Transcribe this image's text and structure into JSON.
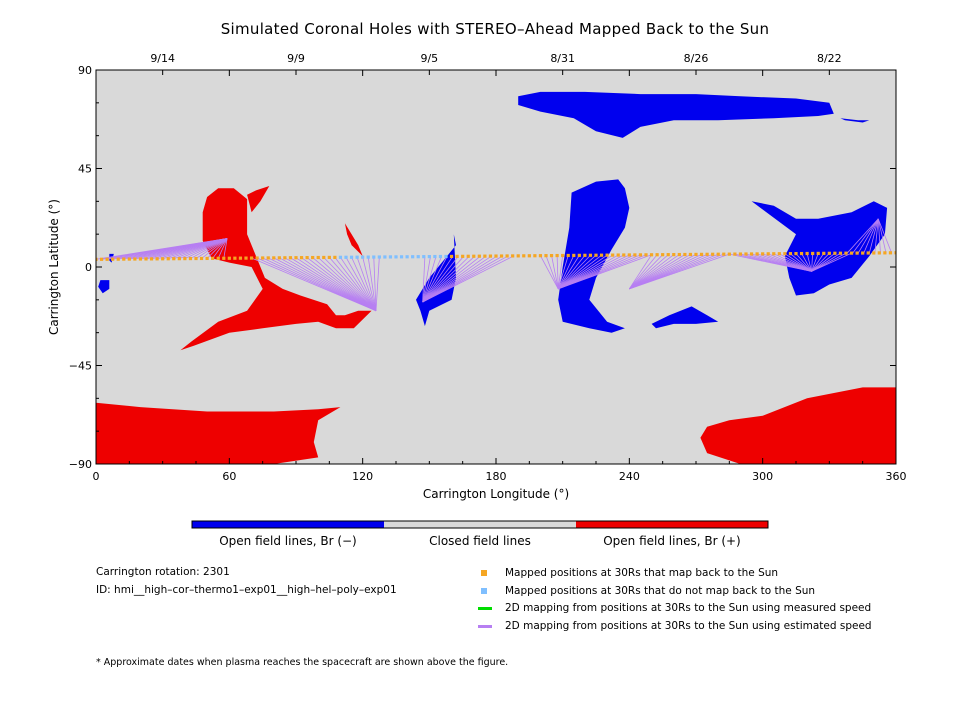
{
  "colors": {
    "background": "#d9d9d9",
    "open_negative": "#0000ee",
    "open_positive": "#ee0000",
    "mapped_back": "#f5a623",
    "not_mapped_back": "#7fbfff",
    "measured_speed": "#00dd00",
    "estimated_speed": "#b77ff2"
  },
  "chart_data": {
    "type": "heatmap",
    "title": "Simulated Coronal Holes with STEREO–Ahead Mapped Back to the Sun",
    "xlabel": "Carrington Longitude (°)",
    "ylabel": "Carrington Latitude (°)",
    "xlim": [
      0,
      360
    ],
    "ylim": [
      -90,
      90
    ],
    "x_ticks": [
      0,
      60,
      120,
      180,
      240,
      300,
      360
    ],
    "y_ticks": [
      -90,
      -45,
      0,
      45,
      90
    ],
    "y_tick_labels": [
      "−90",
      "−45",
      "0",
      "45",
      "90"
    ],
    "top_axis_dates": [
      {
        "lon": 30,
        "label": "9/14"
      },
      {
        "lon": 90,
        "label": "9/9"
      },
      {
        "lon": 150,
        "label": "9/5"
      },
      {
        "lon": 210,
        "label": "8/31"
      },
      {
        "lon": 270,
        "label": "8/26"
      },
      {
        "lon": 330,
        "label": "8/22"
      }
    ],
    "coronal_holes": [
      {
        "polarity": "negative",
        "points": [
          [
            190,
            78
          ],
          [
            200,
            80
          ],
          [
            220,
            80
          ],
          [
            245,
            79
          ],
          [
            270,
            79
          ],
          [
            290,
            78
          ],
          [
            315,
            77
          ],
          [
            330,
            75
          ],
          [
            332,
            70
          ],
          [
            325,
            69
          ],
          [
            305,
            68
          ],
          [
            280,
            67
          ],
          [
            260,
            67
          ],
          [
            245,
            64
          ],
          [
            237,
            59
          ],
          [
            225,
            62
          ],
          [
            215,
            68
          ],
          [
            200,
            71
          ],
          [
            190,
            74
          ]
        ]
      },
      {
        "polarity": "negative",
        "points": [
          [
            335,
            68
          ],
          [
            343,
            67
          ],
          [
            348,
            67
          ],
          [
            345,
            66
          ],
          [
            337,
            67
          ]
        ]
      },
      {
        "polarity": "negative",
        "points": [
          [
            214,
            34
          ],
          [
            225,
            39
          ],
          [
            235,
            40
          ],
          [
            238,
            36
          ],
          [
            240,
            27
          ],
          [
            238,
            18
          ],
          [
            232,
            8
          ],
          [
            225,
            -5
          ],
          [
            222,
            -15
          ],
          [
            230,
            -25
          ],
          [
            238,
            -28
          ],
          [
            232,
            -30
          ],
          [
            222,
            -28
          ],
          [
            210,
            -25
          ],
          [
            208,
            -15
          ],
          [
            210,
            0
          ],
          [
            213,
            18
          ]
        ]
      },
      {
        "polarity": "negative",
        "points": [
          [
            258,
            -22
          ],
          [
            268,
            -18
          ],
          [
            275,
            -22
          ],
          [
            280,
            -25
          ],
          [
            270,
            -26
          ],
          [
            260,
            -26
          ],
          [
            252,
            -28
          ],
          [
            250,
            -26
          ]
        ]
      },
      {
        "polarity": "negative",
        "points": [
          [
            295,
            30
          ],
          [
            305,
            28
          ],
          [
            315,
            22
          ],
          [
            325,
            22
          ],
          [
            340,
            25
          ],
          [
            350,
            30
          ],
          [
            356,
            27
          ],
          [
            355,
            15
          ],
          [
            348,
            5
          ],
          [
            340,
            -5
          ],
          [
            330,
            -8
          ],
          [
            323,
            -12
          ],
          [
            315,
            -13
          ],
          [
            312,
            -5
          ],
          [
            310,
            5
          ],
          [
            315,
            15
          ]
        ]
      },
      {
        "polarity": "negative",
        "points": [
          [
            144,
            -15
          ],
          [
            150,
            -5
          ],
          [
            158,
            5
          ],
          [
            162,
            10
          ],
          [
            161,
            15
          ],
          [
            162,
            -5
          ],
          [
            160,
            -15
          ],
          [
            150,
            -20
          ],
          [
            148,
            -27
          ],
          [
            146,
            -20
          ]
        ]
      },
      {
        "polarity": "negative",
        "points": [
          [
            2,
            -6
          ],
          [
            6,
            -6
          ],
          [
            6,
            -10
          ],
          [
            3,
            -12
          ],
          [
            1,
            -9
          ]
        ]
      },
      {
        "polarity": "negative",
        "points": [
          [
            6,
            6
          ],
          [
            8,
            6
          ],
          [
            7,
            2
          ],
          [
            6,
            3
          ]
        ]
      },
      {
        "polarity": "positive",
        "points": [
          [
            50,
            32
          ],
          [
            55,
            36
          ],
          [
            62,
            36
          ],
          [
            68,
            31
          ],
          [
            68,
            15
          ],
          [
            72,
            5
          ],
          [
            76,
            -5
          ],
          [
            84,
            -10
          ],
          [
            92,
            -13
          ],
          [
            104,
            -17
          ],
          [
            108,
            -22
          ],
          [
            112,
            -22
          ],
          [
            118,
            -20
          ],
          [
            124,
            -20
          ],
          [
            116,
            -28
          ],
          [
            108,
            -28
          ],
          [
            100,
            -25
          ],
          [
            90,
            -26
          ],
          [
            75,
            -28
          ],
          [
            60,
            -30
          ],
          [
            44,
            -36
          ],
          [
            38,
            -38
          ],
          [
            43,
            -34
          ],
          [
            55,
            -25
          ],
          [
            68,
            -20
          ],
          [
            75,
            -10
          ],
          [
            70,
            0
          ],
          [
            60,
            2
          ],
          [
            52,
            4
          ],
          [
            48,
            12
          ],
          [
            48,
            25
          ]
        ]
      },
      {
        "polarity": "positive",
        "points": [
          [
            68,
            33
          ],
          [
            72,
            35
          ],
          [
            78,
            37
          ],
          [
            74,
            30
          ],
          [
            70,
            25
          ]
        ]
      },
      {
        "polarity": "positive",
        "points": [
          [
            112,
            20
          ],
          [
            118,
            10
          ],
          [
            120,
            5
          ],
          [
            115,
            10
          ],
          [
            113,
            15
          ]
        ]
      },
      {
        "polarity": "positive",
        "points": [
          [
            0,
            -62
          ],
          [
            20,
            -64
          ],
          [
            50,
            -66
          ],
          [
            80,
            -66
          ],
          [
            100,
            -65
          ],
          [
            110,
            -64
          ],
          [
            100,
            -70
          ],
          [
            98,
            -80
          ],
          [
            100,
            -87
          ],
          [
            80,
            -90
          ],
          [
            40,
            -90
          ],
          [
            0,
            -90
          ]
        ]
      },
      {
        "polarity": "positive",
        "points": [
          [
            275,
            -73
          ],
          [
            285,
            -70
          ],
          [
            300,
            -68
          ],
          [
            320,
            -60
          ],
          [
            345,
            -55
          ],
          [
            360,
            -55
          ],
          [
            360,
            -90
          ],
          [
            320,
            -90
          ],
          [
            290,
            -90
          ],
          [
            275,
            -85
          ],
          [
            272,
            -78
          ]
        ]
      }
    ],
    "spacecraft_path": {
      "mapped_back_ranges": [
        [
          0,
          108
        ],
        [
          160,
          360
        ]
      ],
      "not_mapped_back_ranges": [
        [
          108,
          160
        ]
      ],
      "lat_start": 3.5,
      "lat_end": 6.5,
      "step": 2.5
    },
    "mapping_fans": [
      {
        "line_type": "estimated_speed",
        "x_range": [
          0,
          59
        ],
        "foot": [
          59,
          13
        ]
      },
      {
        "line_type": "estimated_speed",
        "x_range": [
          70,
          128
        ],
        "foot": [
          126,
          -20
        ]
      },
      {
        "line_type": "estimated_speed",
        "x_range": [
          148,
          190
        ],
        "foot": [
          147,
          -16
        ]
      },
      {
        "line_type": "estimated_speed",
        "x_range": [
          200,
          250
        ],
        "foot": [
          208,
          -10
        ]
      },
      {
        "line_type": "estimated_speed",
        "x_range": [
          250,
          285
        ],
        "foot": [
          240,
          -10
        ]
      },
      {
        "line_type": "estimated_speed",
        "x_range": [
          285,
          340
        ],
        "foot": [
          322,
          -2
        ]
      },
      {
        "line_type": "estimated_speed",
        "x_range": [
          338,
          360
        ],
        "foot": [
          352,
          22
        ]
      }
    ]
  },
  "colorbar": {
    "labels": [
      "Open field lines, Br (−)",
      "Closed field lines",
      "Open field lines, Br (+)"
    ]
  },
  "info": {
    "rotation": "Carrington rotation: 2301",
    "id": "ID: hmi__high–cor–thermo1–exp01__high–hel–poly–exp01"
  },
  "legend": [
    {
      "kind": "square",
      "color_key": "mapped_back",
      "label": "Mapped positions at 30Rs that map back to the Sun"
    },
    {
      "kind": "square",
      "color_key": "not_mapped_back",
      "label": "Mapped positions at 30Rs that do not map back to the Sun"
    },
    {
      "kind": "line",
      "color_key": "measured_speed",
      "label": "2D mapping from positions at 30Rs to the Sun using measured speed"
    },
    {
      "kind": "line",
      "color_key": "estimated_speed",
      "label": "2D mapping from positions at 30Rs to the Sun using estimated speed"
    }
  ],
  "footnote": "* Approximate dates when plasma reaches the spacecraft are shown above the figure."
}
